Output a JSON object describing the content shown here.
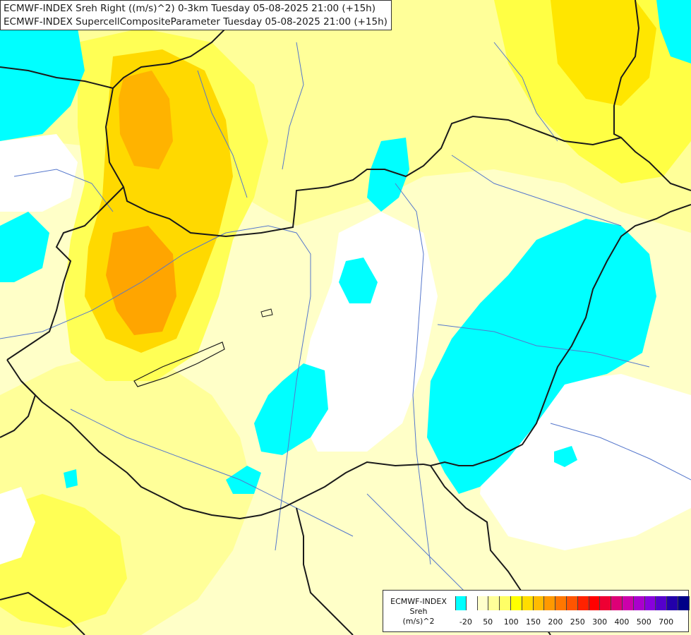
{
  "title": {
    "line1": "ECMWF-INDEX Sreh Right ((m/s)^2) 0-3km Tuesday 05-08-2025 21:00 (+15h)",
    "line2": "ECMWF-INDEX SupercellCompositeParameter Tuesday 05-08-2025 21:00 (+15h)"
  },
  "legend": {
    "source": "ECMWF-INDEX",
    "parameter": "Sreh",
    "unit": "(m/s)^2",
    "ticks": [
      "-20",
      "50",
      "100",
      "150",
      "200",
      "250",
      "300",
      "400",
      "500",
      "700"
    ],
    "colors": [
      "#00ffff",
      "#ffffff",
      "#ffffcc",
      "#ffff99",
      "#ffff66",
      "#ffff00",
      "#ffdd00",
      "#ffbb00",
      "#ff9900",
      "#ff7700",
      "#ff5500",
      "#ff2200",
      "#ff0000",
      "#ee0033",
      "#dd0077",
      "#cc00aa",
      "#aa00cc",
      "#8800dd",
      "#5500cc",
      "#2200aa",
      "#000088"
    ]
  },
  "colors": {
    "background": "#fffde0",
    "light_yellow": "#ffffb3",
    "yellow": "#ffff66",
    "bright_yellow": "#ffee00",
    "gold": "#ffd000",
    "orange": "#ffa500",
    "cyan": "#00ffff",
    "white": "#ffffff",
    "border": "#1a1a1a",
    "river": "#5577cc"
  }
}
